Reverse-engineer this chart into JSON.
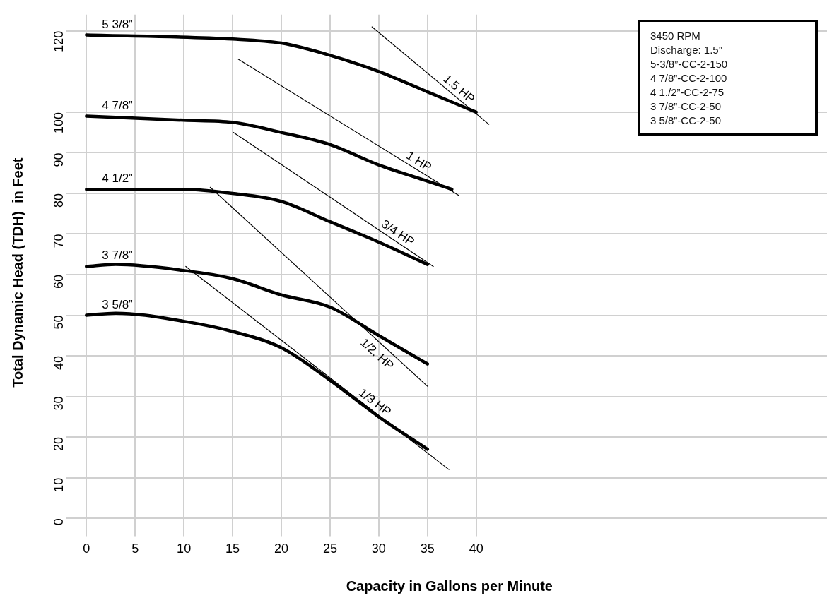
{
  "chart_data": {
    "type": "line",
    "xlabel": "Capacity in Gallons per Minute",
    "ylabel": "Total Dynamic Head (TDH)  in Feet",
    "xlim": [
      -1.5,
      76
    ],
    "xticks": [
      0,
      5,
      10,
      15,
      20,
      25,
      30,
      35,
      40
    ],
    "ylim": [
      -3,
      124
    ],
    "yticks": [
      0,
      10,
      20,
      30,
      40,
      50,
      60,
      70,
      80,
      90,
      100,
      120
    ],
    "grid": true,
    "legend": false,
    "marker": "none",
    "line_style": "solid",
    "series": [
      {
        "name": "5 3/8”",
        "color": "#000000",
        "x": [
          0,
          15,
          20,
          25,
          30,
          35,
          40
        ],
        "values": [
          119,
          118,
          117,
          114,
          110,
          105,
          100
        ]
      },
      {
        "name": "4 7/8”",
        "color": "#000000",
        "x": [
          0,
          10,
          15,
          20,
          25,
          30,
          35,
          37.5
        ],
        "values": [
          99,
          98,
          97.5,
          95,
          92,
          87,
          83,
          81
        ]
      },
      {
        "name": "4 1/2”",
        "color": "#000000",
        "x": [
          0,
          10,
          15,
          20,
          25,
          30,
          35
        ],
        "values": [
          81,
          81,
          80,
          78,
          73,
          68,
          62.5
        ]
      },
      {
        "name": "3 7/8”",
        "color": "#000000",
        "x": [
          0,
          3,
          10,
          15,
          20,
          25,
          30,
          35
        ],
        "values": [
          62,
          62.5,
          61,
          59,
          55,
          52,
          45,
          38
        ]
      },
      {
        "name": "3 5/8”",
        "color": "#000000",
        "x": [
          0,
          3,
          10,
          15,
          20,
          25,
          30,
          35
        ],
        "values": [
          50,
          50.5,
          48.5,
          46,
          42,
          34,
          25,
          17
        ]
      },
      {
        "name": "1.5 HP",
        "color": "#000000",
        "x": [
          29.3,
          41.3
        ],
        "values": [
          121,
          97
        ]
      },
      {
        "name": "1 HP",
        "color": "#000000",
        "x": [
          15.6,
          38.2
        ],
        "values": [
          113,
          79.5
        ]
      },
      {
        "name": "3/4 HP",
        "color": "#000000",
        "x": [
          15.1,
          35.6
        ],
        "values": [
          95,
          62
        ]
      },
      {
        "name": "1/2. HP",
        "color": "#000000",
        "x": [
          12.7,
          35
        ],
        "values": [
          81.5,
          32.5
        ]
      },
      {
        "name": "1/3 HP",
        "color": "#000000",
        "x": [
          10.2,
          37.2
        ],
        "values": [
          62,
          12
        ]
      }
    ],
    "annotations": [
      "3450 RPM",
      "Discharge: 1.5”",
      "5-3/8”-CC-2-150",
      "4 7/8”-CC-2-100",
      "4 1./2”-CC-2-75",
      "3 7/8”-CC-2-50",
      "3 5/8”-CC-2-50"
    ]
  }
}
